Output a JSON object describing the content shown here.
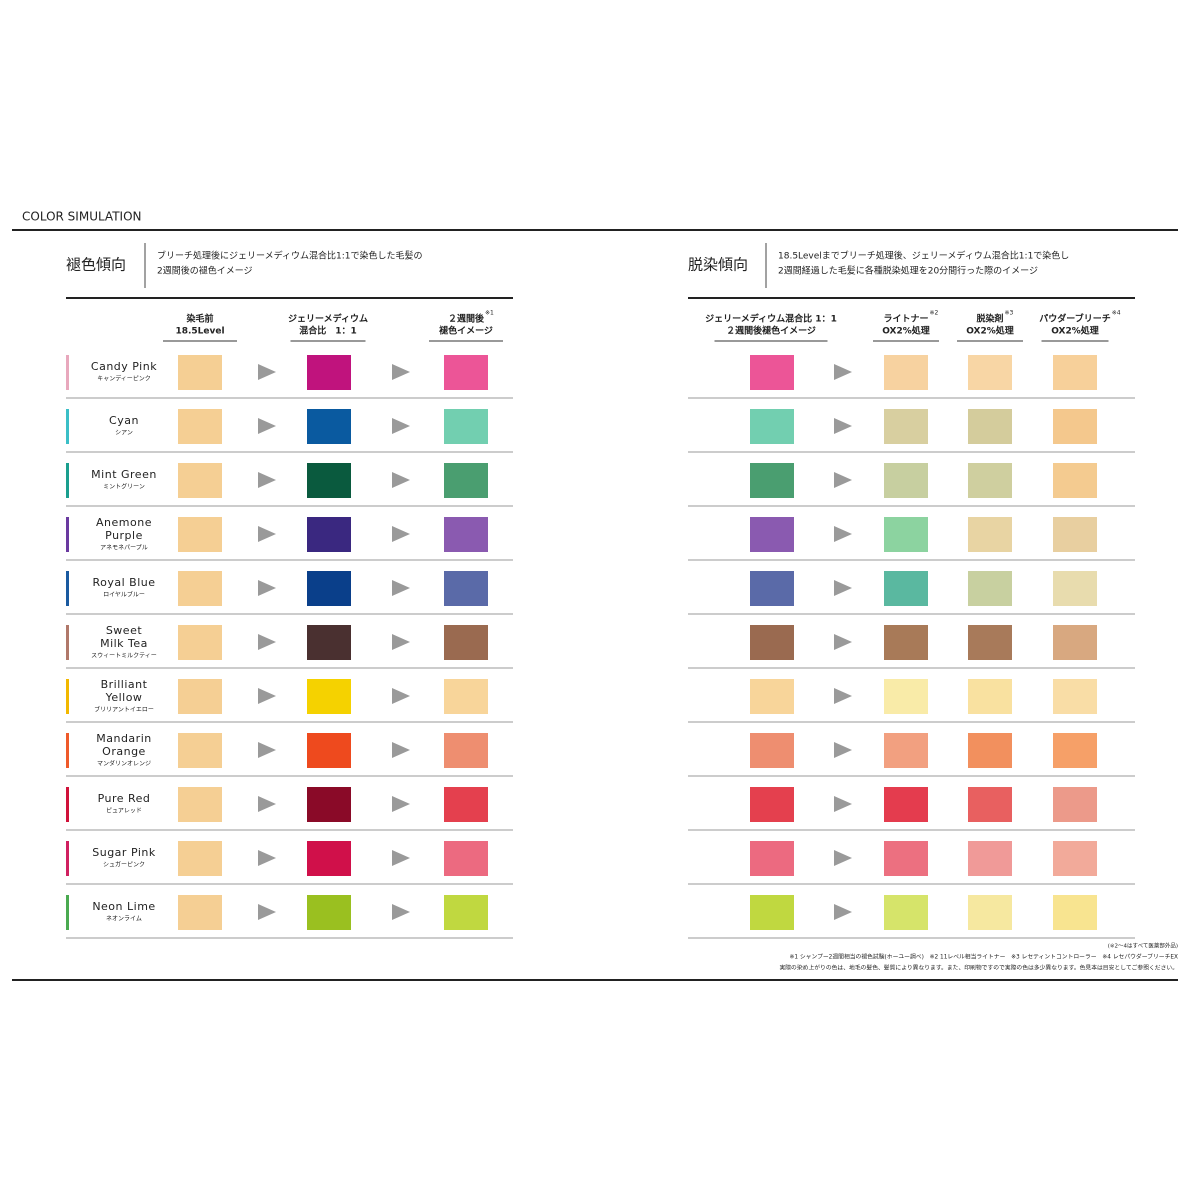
{
  "header": {
    "title": "COLOR SIMULATION"
  },
  "left": {
    "title": "褪色傾向",
    "description": [
      "ブリーチ処理後にジェリーメディウム混合比1:1で染色した毛髪の",
      "2週間後の褪色イメージ"
    ],
    "columns": [
      {
        "lines": [
          "染毛前",
          "18.5Level"
        ]
      },
      {
        "lines": [
          "ジェリーメディウム",
          "混合比　1：1"
        ]
      },
      {
        "lines": [
          "２週間後",
          "褪色イメージ"
        ],
        "note": "※1"
      }
    ],
    "rows": [
      {
        "name": [
          "Candy Pink"
        ],
        "kana": "キャンディーピンク",
        "bar": "#e8a8bd",
        "swatches": [
          "#f5cf94",
          "#c0137d",
          "#ec5597"
        ]
      },
      {
        "name": [
          "Cyan"
        ],
        "kana": "シアン",
        "bar": "#3bbfc7",
        "swatches": [
          "#f5cf94",
          "#0a5aa0",
          "#72cfb0"
        ]
      },
      {
        "name": [
          "Mint Green"
        ],
        "kana": "ミントグリーン",
        "bar": "#1a9f8e",
        "swatches": [
          "#f5cf94",
          "#0a5a3e",
          "#4a9e70"
        ]
      },
      {
        "name": [
          "Anemone",
          "Purple"
        ],
        "kana": "アネモネパープル",
        "bar": "#6a3aa0",
        "swatches": [
          "#f5cf94",
          "#3a2880",
          "#8a5ab0"
        ]
      },
      {
        "name": [
          "Royal Blue"
        ],
        "kana": "ロイヤルブルー",
        "bar": "#1a5aa0",
        "swatches": [
          "#f5cf94",
          "#0a3f8a",
          "#5a6aa8"
        ]
      },
      {
        "name": [
          "Sweet",
          "Milk Tea"
        ],
        "kana": "スウィートミルクティー",
        "bar": "#b0786a",
        "swatches": [
          "#f5cf94",
          "#4a3030",
          "#9a6a50"
        ]
      },
      {
        "name": [
          "Brilliant",
          "Yellow"
        ],
        "kana": "ブリリアントイエロー",
        "bar": "#f2b800",
        "swatches": [
          "#f5cf94",
          "#f5d200",
          "#f8d59a"
        ]
      },
      {
        "name": [
          "Mandarin",
          "Orange"
        ],
        "kana": "マンダリンオレンジ",
        "bar": "#ef5a2a",
        "swatches": [
          "#f5cf94",
          "#ee4a1e",
          "#ee8e70"
        ]
      },
      {
        "name": [
          "Pure Red"
        ],
        "kana": "ピュアレッド",
        "bar": "#d0123a",
        "swatches": [
          "#f5cf94",
          "#8a0a28",
          "#e4404e"
        ]
      },
      {
        "name": [
          "Sugar Pink"
        ],
        "kana": "シュガーピンク",
        "bar": "#d02060",
        "swatches": [
          "#f5cf94",
          "#d0104a",
          "#ec6a80"
        ]
      },
      {
        "name": [
          "Neon Lime"
        ],
        "kana": "ネオンライム",
        "bar": "#4aaa50",
        "swatches": [
          "#f5cf94",
          "#9ac020",
          "#c0d840"
        ]
      }
    ]
  },
  "right": {
    "title": "脱染傾向",
    "description": [
      "18.5Levelまでブリーチ処理後、ジェリーメディウム混合比1:1で染色し",
      "2週間経過した毛髪に各種脱染処理を20分間行った際のイメージ"
    ],
    "columns": [
      {
        "lines": [
          "ジェリーメディウム混合比 1：1",
          "２週間後褪色イメージ"
        ]
      },
      {
        "lines": [
          "ライトナー",
          "OX2%処理"
        ],
        "note": "※2"
      },
      {
        "lines": [
          "脱染剤",
          "OX2%処理"
        ],
        "note": "※3"
      },
      {
        "lines": [
          "パウダーブリーチ",
          "OX2%処理"
        ],
        "note": "※4"
      }
    ],
    "rows": [
      {
        "swatches": [
          "#f7d2a0",
          "#f8d6a5",
          "#f7d09a"
        ]
      },
      {
        "swatches": [
          "#d8cfa0",
          "#d4cc9c",
          "#f4c88d"
        ]
      },
      {
        "swatches": [
          "#c7cfa0",
          "#cfcf9f",
          "#f4cb90"
        ]
      },
      {
        "swatches": [
          "#8cd3a0",
          "#e8d4a3",
          "#e8cfa0"
        ]
      },
      {
        "swatches": [
          "#5ab8a0",
          "#c8d0a0",
          "#e8dcae"
        ]
      },
      {
        "swatches": [
          "#a87a58",
          "#a87a5a",
          "#d8a880"
        ]
      },
      {
        "swatches": [
          "#f9eba8",
          "#f9e1a0",
          "#f9dda6"
        ]
      },
      {
        "swatches": [
          "#f2a080",
          "#f2905e",
          "#f6a068"
        ]
      },
      {
        "swatches": [
          "#e43c4e",
          "#e86060",
          "#ec9a8a"
        ]
      },
      {
        "swatches": [
          "#ec7080",
          "#f09a98",
          "#f2aa9a"
        ]
      },
      {
        "swatches": [
          "#d6e46a",
          "#f6e8a0",
          "#f8e490"
        ]
      }
    ]
  },
  "footnotes": [
    "(※2〜4はすべて医薬部外品)",
    "※1 シャンプー2週間相当の褪色試験(ホーユー調べ)　※2 11レベル相当ライトナー　※3 レセティントコントローラー　※4 レセパウダーブリーチEX",
    "実際の染め上がりの色は、地毛の髪色、髪質により異なります。また、印刷物ですので実際の色は多少異なります。色見本は目安としてご参照ください。"
  ]
}
